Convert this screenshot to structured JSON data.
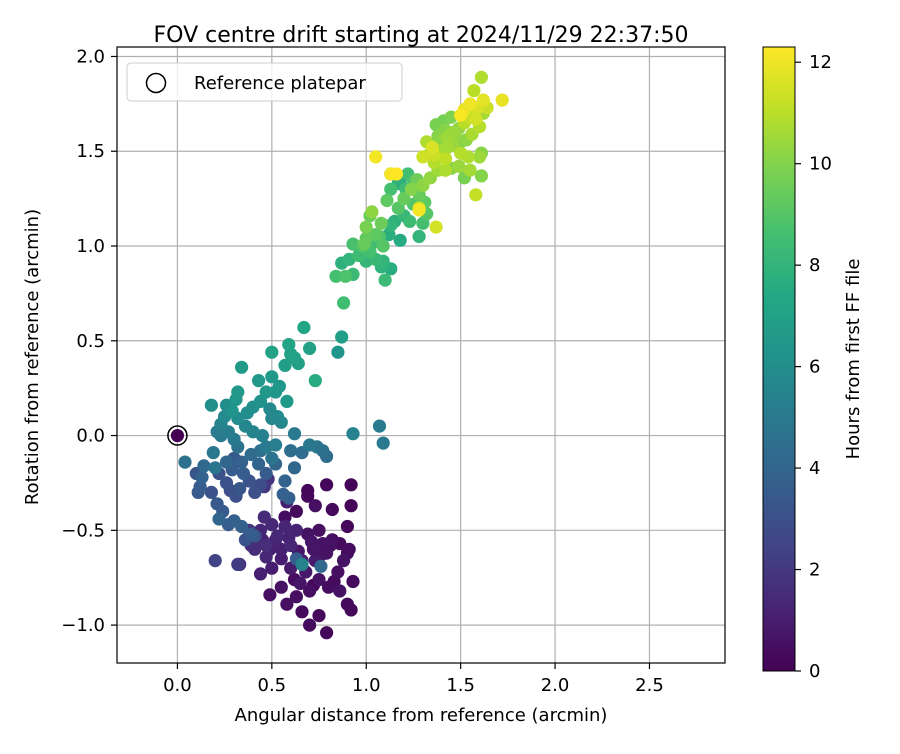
{
  "chart_data": {
    "type": "scatter",
    "title": "FOV centre drift starting at 2024/11/29 22:37:50",
    "xlabel": "Angular distance from reference (arcmin)",
    "ylabel": "Rotation from reference (arcmin)",
    "xlim": [
      -0.32,
      2.9
    ],
    "ylim": [
      -1.2,
      2.05
    ],
    "xticks": [
      0.0,
      0.5,
      1.0,
      1.5,
      2.0,
      2.5
    ],
    "xtick_labels": [
      "0.0",
      "0.5",
      "1.0",
      "1.5",
      "2.0",
      "2.5"
    ],
    "yticks": [
      -1.0,
      -0.5,
      0.0,
      0.5,
      1.0,
      1.5,
      2.0
    ],
    "ytick_labels": [
      "−1.0",
      "−0.5",
      "0.0",
      "0.5",
      "1.0",
      "1.5",
      "2.0"
    ],
    "grid": true,
    "legend": {
      "position": "upper-left",
      "label": "Reference platepar"
    },
    "reference_point": {
      "x": 0.0,
      "y": 0.0
    },
    "colorbar": {
      "label": "Hours from first FF file",
      "range": [
        0,
        12.3
      ],
      "ticks": [
        0,
        2,
        4,
        6,
        8,
        10,
        12
      ],
      "tick_labels": [
        "0",
        "2",
        "4",
        "6",
        "8",
        "10",
        "12"
      ],
      "colormap": "viridis"
    },
    "points": [
      [
        0.92,
        -0.92,
        0.2
      ],
      [
        0.79,
        -1.04,
        0.2
      ],
      [
        0.7,
        -1.0,
        0.3
      ],
      [
        0.9,
        -0.89,
        0.3
      ],
      [
        0.75,
        -0.95,
        0.3
      ],
      [
        0.66,
        -0.93,
        0.3
      ],
      [
        0.58,
        -0.89,
        0.5
      ],
      [
        0.49,
        -0.84,
        0.5
      ],
      [
        0.63,
        -0.85,
        0.5
      ],
      [
        0.86,
        -0.82,
        0.6
      ],
      [
        0.93,
        -0.77,
        0.3
      ],
      [
        0.8,
        -0.8,
        0.4
      ],
      [
        0.7,
        -0.82,
        0.5
      ],
      [
        0.55,
        -0.8,
        0.6
      ],
      [
        0.65,
        -0.78,
        0.7
      ],
      [
        0.75,
        -0.76,
        0.6
      ],
      [
        0.85,
        -0.72,
        0.5
      ],
      [
        0.88,
        -0.66,
        0.6
      ],
      [
        0.91,
        -0.6,
        0.4
      ],
      [
        0.86,
        -0.57,
        0.3
      ],
      [
        0.9,
        -0.48,
        0.2
      ],
      [
        0.82,
        -0.55,
        0.5
      ],
      [
        0.78,
        -0.62,
        0.6
      ],
      [
        0.72,
        -0.6,
        0.7
      ],
      [
        0.68,
        -0.72,
        0.8
      ],
      [
        0.6,
        -0.7,
        0.9
      ],
      [
        0.55,
        -0.65,
        1.0
      ],
      [
        0.5,
        -0.7,
        1.0
      ],
      [
        0.44,
        -0.73,
        1.1
      ],
      [
        0.49,
        -0.6,
        1.1
      ],
      [
        0.45,
        -0.55,
        1.2
      ],
      [
        0.52,
        -0.55,
        1.2
      ],
      [
        0.6,
        -0.58,
        1.3
      ],
      [
        0.63,
        -0.5,
        1.2
      ],
      [
        0.69,
        -0.52,
        0.6
      ],
      [
        0.75,
        -0.5,
        0.5
      ],
      [
        0.77,
        -0.57,
        0.6
      ],
      [
        0.81,
        -0.58,
        0.6
      ],
      [
        0.73,
        -0.66,
        0.9
      ],
      [
        0.66,
        -0.66,
        1.0
      ],
      [
        0.57,
        -0.48,
        1.3
      ],
      [
        0.5,
        -0.47,
        1.4
      ],
      [
        0.44,
        -0.5,
        1.4
      ],
      [
        0.42,
        -0.55,
        1.5
      ],
      [
        0.39,
        -0.58,
        1.6
      ],
      [
        0.47,
        -0.64,
        1.4
      ],
      [
        0.41,
        -0.6,
        1.6
      ],
      [
        0.57,
        -0.43,
        0.4
      ],
      [
        0.63,
        -0.4,
        0.3
      ],
      [
        0.69,
        -0.32,
        0.2
      ],
      [
        0.79,
        -0.26,
        0.2
      ],
      [
        0.92,
        -0.26,
        0.1
      ],
      [
        0.92,
        -0.37,
        0.1
      ],
      [
        0.82,
        -0.39,
        0.3
      ],
      [
        0.73,
        -0.37,
        0.5
      ],
      [
        0.58,
        -0.35,
        1.0
      ],
      [
        0.46,
        -0.43,
        1.5
      ],
      [
        0.48,
        -0.23,
        1.8
      ],
      [
        0.46,
        -0.27,
        2.0
      ],
      [
        0.33,
        -0.68,
        1.6
      ],
      [
        0.32,
        -0.68,
        2.2
      ],
      [
        0.2,
        -0.66,
        2.5
      ],
      [
        0.69,
        -0.29,
        0.2
      ],
      [
        0.75,
        -0.64,
        0.4
      ],
      [
        0.79,
        -0.62,
        0.6
      ],
      [
        0.71,
        -0.56,
        0.7
      ],
      [
        0.64,
        -0.61,
        0.8
      ],
      [
        0.59,
        -0.54,
        1.2
      ],
      [
        0.55,
        -0.6,
        1.1
      ],
      [
        0.53,
        -0.53,
        1.4
      ],
      [
        0.47,
        -0.58,
        1.6
      ],
      [
        0.38,
        -0.5,
        2.0
      ],
      [
        0.36,
        -0.55,
        3.2
      ],
      [
        0.41,
        -0.53,
        3.3
      ],
      [
        0.39,
        -0.52,
        3.6
      ],
      [
        0.34,
        -0.48,
        3.7
      ],
      [
        0.3,
        -0.45,
        3.8
      ],
      [
        0.27,
        -0.47,
        3.6
      ],
      [
        0.24,
        -0.4,
        3.5
      ],
      [
        0.22,
        -0.44,
        4.0
      ],
      [
        0.21,
        -0.36,
        3.4
      ],
      [
        0.18,
        -0.3,
        3.2
      ],
      [
        0.11,
        -0.3,
        3.4
      ],
      [
        0.12,
        -0.27,
        3.6
      ],
      [
        0.1,
        -0.2,
        3.3
      ],
      [
        0.13,
        -0.22,
        3.8
      ],
      [
        0.14,
        -0.16,
        4.2
      ],
      [
        0.04,
        -0.14,
        4.6
      ],
      [
        0.19,
        -0.09,
        4.9
      ],
      [
        0.2,
        -0.17,
        4.8
      ],
      [
        0.22,
        -0.2,
        3.0
      ],
      [
        0.26,
        -0.25,
        3.2
      ],
      [
        0.28,
        -0.29,
        2.9
      ],
      [
        0.31,
        -0.32,
        3.0
      ],
      [
        0.33,
        -0.28,
        3.3
      ],
      [
        0.29,
        -0.18,
        3.6
      ],
      [
        0.34,
        -0.14,
        3.8
      ],
      [
        0.3,
        -0.12,
        3.5
      ],
      [
        0.26,
        -0.14,
        4.1
      ],
      [
        0.32,
        -0.06,
        4.6
      ],
      [
        0.35,
        -0.2,
        3.6
      ],
      [
        0.38,
        -0.24,
        3.1
      ],
      [
        0.41,
        -0.3,
        3.0
      ],
      [
        0.44,
        -0.26,
        2.8
      ],
      [
        0.47,
        -0.2,
        3.5
      ],
      [
        0.43,
        -0.15,
        4.0
      ],
      [
        0.39,
        -0.1,
        4.3
      ],
      [
        0.44,
        -0.08,
        4.5
      ],
      [
        0.5,
        -0.12,
        4.7
      ],
      [
        0.47,
        -0.06,
        5.0
      ],
      [
        0.52,
        -0.05,
        5.2
      ],
      [
        0.45,
        0.0,
        5.3
      ],
      [
        0.4,
        0.02,
        5.5
      ],
      [
        0.36,
        0.05,
        5.6
      ],
      [
        0.3,
        -0.02,
        5.0
      ],
      [
        0.27,
        0.02,
        5.2
      ],
      [
        0.23,
        0.06,
        5.4
      ],
      [
        0.21,
        0.02,
        5.1
      ],
      [
        0.25,
        0.1,
        5.8
      ],
      [
        0.29,
        0.13,
        6.3
      ],
      [
        0.32,
        0.09,
        5.9
      ],
      [
        0.26,
        0.16,
        6.0
      ],
      [
        0.31,
        0.19,
        6.4
      ],
      [
        0.37,
        0.12,
        5.9
      ],
      [
        0.4,
        0.15,
        6.1
      ],
      [
        0.44,
        0.18,
        6.2
      ],
      [
        0.49,
        0.14,
        5.7
      ],
      [
        0.5,
        0.09,
        5.6
      ],
      [
        0.53,
        0.1,
        5.8
      ],
      [
        0.55,
        0.07,
        5.7
      ],
      [
        0.52,
        0.23,
        6.4
      ],
      [
        0.47,
        0.23,
        6.5
      ],
      [
        0.43,
        0.29,
        6.5
      ],
      [
        0.5,
        0.31,
        6.6
      ],
      [
        0.54,
        0.26,
        6.4
      ],
      [
        0.58,
        0.18,
        6.6
      ],
      [
        0.57,
        0.37,
        6.8
      ],
      [
        0.6,
        0.43,
        7.0
      ],
      [
        0.62,
        0.41,
        7.0
      ],
      [
        0.64,
        0.38,
        6.9
      ],
      [
        0.7,
        0.46,
        7.0
      ],
      [
        0.67,
        0.57,
        7.2
      ],
      [
        0.5,
        0.44,
        7.0
      ],
      [
        0.34,
        0.36,
        6.7
      ],
      [
        0.32,
        0.23,
        6.5
      ],
      [
        0.18,
        0.16,
        6.0
      ],
      [
        0.23,
        0.0,
        4.9
      ],
      [
        0.59,
        0.48,
        7.1
      ],
      [
        0.6,
        -0.08,
        4.4
      ],
      [
        0.62,
        0.01,
        5.0
      ],
      [
        0.7,
        -0.05,
        4.9
      ],
      [
        0.74,
        -0.06,
        4.7
      ],
      [
        0.77,
        -0.08,
        4.5
      ],
      [
        0.79,
        -0.11,
        4.4
      ],
      [
        0.66,
        -0.09,
        4.4
      ],
      [
        0.62,
        -0.17,
        4.1
      ],
      [
        0.52,
        -0.15,
        4.1
      ],
      [
        0.57,
        -0.24,
        3.9
      ],
      [
        0.59,
        -0.33,
        3.7
      ],
      [
        0.56,
        -0.31,
        3.8
      ],
      [
        0.63,
        -0.65,
        3.6
      ],
      [
        0.76,
        -0.69,
        4.2
      ],
      [
        0.93,
        0.01,
        5.4
      ],
      [
        1.07,
        0.05,
        5.1
      ],
      [
        1.09,
        -0.04,
        5.0
      ],
      [
        0.85,
        0.44,
        6.3
      ],
      [
        0.87,
        0.52,
        6.8
      ],
      [
        0.88,
        0.7,
        8.5
      ],
      [
        0.73,
        0.29,
        7.5
      ],
      [
        0.84,
        0.84,
        8.6
      ],
      [
        0.89,
        0.84,
        8.8
      ],
      [
        0.87,
        0.91,
        7.8
      ],
      [
        0.93,
        0.85,
        8.3
      ],
      [
        0.91,
        0.93,
        8.0
      ],
      [
        0.96,
        0.95,
        8.4
      ],
      [
        1.0,
        0.92,
        8.1
      ],
      [
        1.02,
        0.97,
        8.6
      ],
      [
        1.05,
        0.93,
        8.2
      ],
      [
        1.08,
        0.89,
        7.9
      ],
      [
        1.09,
        0.92,
        8.0
      ],
      [
        1.13,
        0.88,
        7.6
      ],
      [
        1.1,
        0.82,
        8.3
      ],
      [
        0.93,
        1.01,
        8.7
      ],
      [
        0.98,
        1.0,
        8.9
      ],
      [
        1.04,
        1.02,
        8.5
      ],
      [
        1.09,
        1.0,
        9.0
      ],
      [
        1.07,
        1.05,
        8.8
      ],
      [
        1.12,
        1.06,
        7.7
      ],
      [
        1.18,
        1.03,
        7.5
      ],
      [
        1.13,
        1.11,
        8.0
      ],
      [
        1.15,
        1.13,
        7.8
      ],
      [
        1.2,
        1.16,
        8.2
      ],
      [
        1.23,
        1.13,
        8.4
      ],
      [
        1.28,
        1.05,
        8.0
      ],
      [
        1.3,
        1.12,
        8.6
      ],
      [
        1.32,
        1.17,
        9.0
      ],
      [
        1.25,
        1.22,
        8.9
      ],
      [
        1.2,
        1.25,
        9.4
      ],
      [
        1.17,
        1.2,
        9.0
      ],
      [
        1.11,
        1.24,
        9.2
      ],
      [
        1.13,
        1.3,
        8.6
      ],
      [
        1.17,
        1.33,
        7.8
      ],
      [
        1.21,
        1.3,
        8.5
      ],
      [
        1.25,
        1.34,
        8.8
      ],
      [
        1.28,
        1.27,
        9.4
      ],
      [
        1.31,
        1.23,
        9.2
      ],
      [
        1.27,
        1.35,
        9.6
      ],
      [
        1.22,
        1.38,
        8.5
      ],
      [
        1.18,
        1.35,
        7.5
      ],
      [
        1.13,
        1.38,
        7.4
      ],
      [
        1.02,
        1.16,
        9.5
      ],
      [
        1.0,
        1.1,
        9.8
      ],
      [
        1.03,
        1.18,
        10.2
      ],
      [
        1.08,
        1.12,
        9.5
      ],
      [
        1.05,
        1.06,
        9.2
      ],
      [
        1.0,
        1.04,
        9.3
      ],
      [
        0.99,
        1.01,
        9.4
      ],
      [
        1.37,
        1.1,
        11.5
      ],
      [
        1.28,
        1.2,
        11.4
      ],
      [
        1.24,
        1.3,
        10.0
      ],
      [
        1.3,
        1.32,
        10.2
      ],
      [
        1.34,
        1.36,
        10.3
      ],
      [
        1.38,
        1.4,
        10.5
      ],
      [
        1.42,
        1.4,
        10.8
      ],
      [
        1.36,
        1.44,
        10.9
      ],
      [
        1.3,
        1.47,
        11.4
      ],
      [
        1.35,
        1.52,
        11.6
      ],
      [
        1.39,
        1.5,
        10.6
      ],
      [
        1.42,
        1.46,
        11.1
      ],
      [
        1.45,
        1.41,
        10.1
      ],
      [
        1.49,
        1.42,
        10.4
      ],
      [
        1.52,
        1.36,
        9.8
      ],
      [
        1.55,
        1.4,
        10.6
      ],
      [
        1.58,
        1.27,
        11.2
      ],
      [
        1.61,
        1.37,
        10.0
      ],
      [
        1.6,
        1.47,
        10.5
      ],
      [
        1.61,
        1.49,
        10.1
      ],
      [
        1.54,
        1.47,
        10.8
      ],
      [
        1.5,
        1.49,
        10.9
      ],
      [
        1.46,
        1.53,
        10.4
      ],
      [
        1.43,
        1.57,
        10.5
      ],
      [
        1.47,
        1.58,
        10.3
      ],
      [
        1.5,
        1.55,
        9.9
      ],
      [
        1.53,
        1.56,
        10.2
      ],
      [
        1.56,
        1.59,
        10.7
      ],
      [
        1.6,
        1.63,
        10.9
      ],
      [
        1.58,
        1.67,
        11.5
      ],
      [
        1.62,
        1.7,
        10.6
      ],
      [
        1.64,
        1.73,
        11.3
      ],
      [
        1.59,
        1.73,
        11.6
      ],
      [
        1.62,
        1.77,
        11.8
      ],
      [
        1.55,
        1.75,
        12.0
      ],
      [
        1.52,
        1.72,
        11.9
      ],
      [
        1.5,
        1.69,
        12.2
      ],
      [
        1.55,
        1.68,
        11.2
      ],
      [
        1.52,
        1.65,
        11.0
      ],
      [
        1.49,
        1.62,
        10.3
      ],
      [
        1.46,
        1.6,
        10.4
      ],
      [
        1.42,
        1.61,
        10.1
      ],
      [
        1.38,
        1.58,
        10.0
      ],
      [
        1.37,
        1.64,
        9.8
      ],
      [
        1.41,
        1.66,
        9.7
      ],
      [
        1.45,
        1.68,
        9.9
      ],
      [
        1.43,
        1.52,
        10.6
      ],
      [
        1.4,
        1.56,
        10.2
      ],
      [
        1.33,
        1.48,
        10.5
      ],
      [
        1.32,
        1.55,
        10.8
      ],
      [
        1.36,
        1.48,
        11.3
      ],
      [
        1.61,
        1.89,
        10.8
      ],
      [
        1.72,
        1.77,
        11.9
      ],
      [
        1.57,
        1.82,
        11.0
      ],
      [
        1.62,
        1.75,
        10.9
      ],
      [
        1.05,
        1.47,
        12.1
      ],
      [
        1.13,
        1.38,
        12.2
      ],
      [
        1.16,
        1.38,
        12.3
      ],
      [
        1.28,
        1.19,
        12.1
      ],
      [
        0.9,
        -0.62,
        0.4
      ],
      [
        0.83,
        -0.77,
        0.3
      ],
      [
        0.72,
        -0.79,
        0.2
      ],
      [
        0.62,
        -0.76,
        0.4
      ],
      [
        0.66,
        -0.68,
        5.4
      ]
    ]
  }
}
